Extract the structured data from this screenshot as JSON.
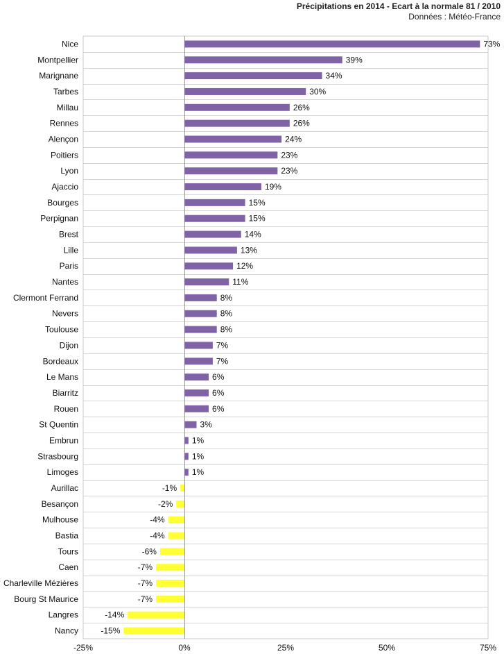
{
  "chart_data": {
    "type": "bar",
    "orientation": "horizontal",
    "title": "Précipitations en 2014 - Ecart à la normale 81 / 2010",
    "subtitle": "Données : Météo-France",
    "xlabel": "",
    "ylabel": "",
    "xlim": [
      -0.25,
      0.75
    ],
    "xticks": [
      -0.25,
      0,
      0.25,
      0.5,
      0.75
    ],
    "xtick_labels": [
      "-25%",
      "0%",
      "25%",
      "50%",
      "75%"
    ],
    "grid": true,
    "positive_color": "#7f63a6",
    "negative_color": "#ffff33",
    "categories": [
      "Nice",
      "Montpellier",
      "Marignane",
      "Tarbes",
      "Millau",
      "Rennes",
      "Alençon",
      "Poitiers",
      "Lyon",
      "Ajaccio",
      "Bourges",
      "Perpignan",
      "Brest",
      "Lille",
      "Paris",
      "Nantes",
      "Clermont Ferrand",
      "Nevers",
      "Toulouse",
      "Dijon",
      "Bordeaux",
      "Le Mans",
      "Biarritz",
      "Rouen",
      "St Quentin",
      "Embrun",
      "Strasbourg",
      "Limoges",
      "Aurillac",
      "Besançon",
      "Mulhouse",
      "Bastia",
      "Tours",
      "Caen",
      "Charleville Mézières",
      "Bourg St Maurice",
      "Langres",
      "Nancy"
    ],
    "values": [
      0.73,
      0.39,
      0.34,
      0.3,
      0.26,
      0.26,
      0.24,
      0.23,
      0.23,
      0.19,
      0.15,
      0.15,
      0.14,
      0.13,
      0.12,
      0.11,
      0.08,
      0.08,
      0.08,
      0.07,
      0.07,
      0.06,
      0.06,
      0.06,
      0.03,
      0.01,
      0.01,
      0.01,
      -0.01,
      -0.02,
      -0.04,
      -0.04,
      -0.06,
      -0.07,
      -0.07,
      -0.07,
      -0.14,
      -0.15
    ],
    "value_labels": [
      "73%",
      "39%",
      "34%",
      "30%",
      "26%",
      "26%",
      "24%",
      "23%",
      "23%",
      "19%",
      "15%",
      "15%",
      "14%",
      "13%",
      "12%",
      "11%",
      "8%",
      "8%",
      "8%",
      "7%",
      "7%",
      "6%",
      "6%",
      "6%",
      "3%",
      "1%",
      "1%",
      "1%",
      "-1%",
      "-2%",
      "-4%",
      "-4%",
      "-6%",
      "-7%",
      "-7%",
      "-7%",
      "-14%",
      "-15%"
    ]
  }
}
